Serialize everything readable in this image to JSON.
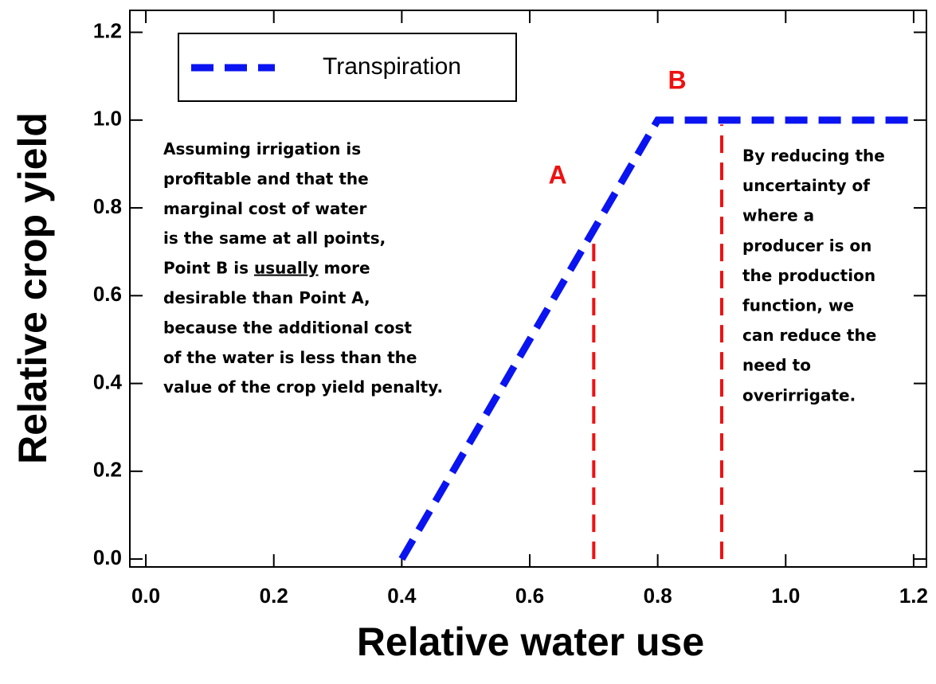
{
  "chart_data": {
    "type": "line",
    "xlabel": "Relative water use",
    "ylabel": "Relative crop yield",
    "xlim": [
      -0.025,
      1.22
    ],
    "ylim": [
      -0.018,
      1.25
    ],
    "xticks": [
      {
        "value": 0,
        "label": "0.0"
      },
      0.2,
      0.4,
      0.6,
      0.8,
      {
        "value": 1,
        "label": "1.0"
      },
      1.2
    ],
    "yticks": [
      {
        "value": 0,
        "label": "0.0"
      },
      0.2,
      0.4,
      0.6,
      0.8,
      {
        "value": 1,
        "label": "1.0"
      },
      1.2
    ],
    "legend": "upper left",
    "series": [
      {
        "name": "Transpiration",
        "color": "#0a14f0",
        "x": [
          0.4,
          0.8,
          1.2
        ],
        "values": [
          0,
          1,
          1
        ]
      }
    ],
    "reference_lines": [
      {
        "color": "#ee1111",
        "x": [
          0.7,
          0.7
        ],
        "values": [
          0,
          0.75
        ]
      },
      {
        "color": "#ee1111",
        "x": [
          0.9,
          0.9
        ],
        "values": [
          0,
          0.99
        ]
      }
    ],
    "point_labels": [
      {
        "text": "A",
        "color": "#ee1111"
      },
      {
        "text": "B",
        "color": "#ee1111"
      }
    ],
    "left_note": [
      [
        {
          "text": "Assuming irrigation is"
        }
      ],
      [
        {
          "text": "profitable and that the"
        }
      ],
      [
        {
          "text": "marginal cost of water"
        }
      ],
      [
        {
          "text": "is the same at all points,"
        }
      ],
      [
        {
          "text": "Point B is "
        },
        {
          "text": "usually",
          "underline": true
        },
        {
          "text": " more"
        }
      ],
      [
        {
          "text": "desirable than Point A,"
        }
      ],
      [
        {
          "text": "because the additional cost"
        }
      ],
      [
        {
          "text": "of the water is less than the"
        }
      ],
      [
        {
          "text": "value of the crop yield penalty."
        }
      ]
    ],
    "right_note": [
      "By reducing the",
      "uncertainty of",
      "where a",
      "producer is on",
      "the production",
      "function, we",
      "can reduce the",
      "need to",
      "overirrigate."
    ]
  }
}
